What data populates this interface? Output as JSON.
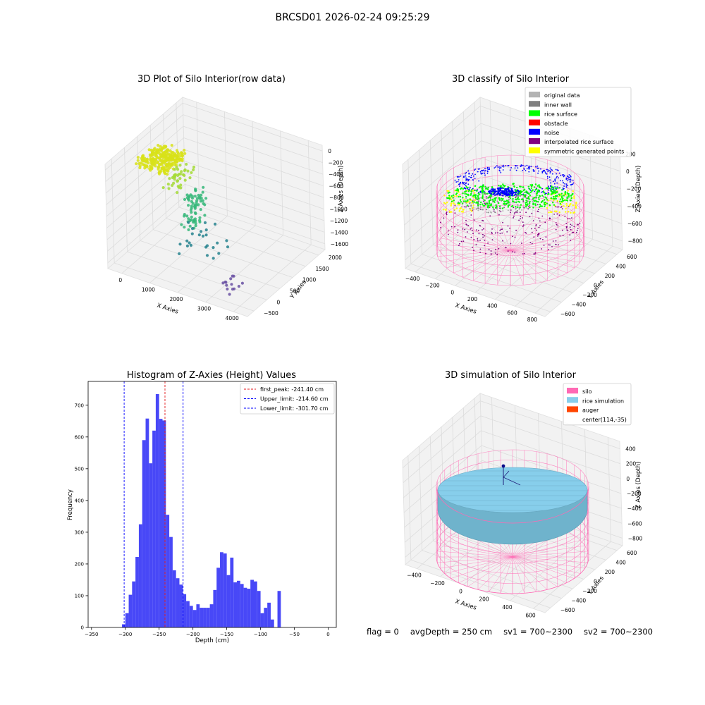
{
  "suptitle": "BRCSD01 2026-02-24 09:25:29",
  "status": {
    "flag": "flag = 0",
    "avg_depth": "avgDepth = 250 cm",
    "sv1": "sv1 = 700~2300",
    "sv2": "sv2 = 700~2300"
  },
  "chart_data": [
    {
      "type": "scatter",
      "projection": "3d",
      "title": "3D Plot of Silo Interior(row data)",
      "xlabel": "X Axies",
      "ylabel": "Y Axies",
      "zlabel": "Z Axies (Depth)",
      "x_ticks": [
        "0",
        "1000",
        "2000",
        "3000",
        "4000"
      ],
      "y_ticks": [
        "−500",
        "0",
        "500",
        "1000",
        "1500",
        "2000"
      ],
      "z_ticks": [
        "0",
        "−200",
        "−400",
        "−600",
        "−800",
        "−1000",
        "−1200",
        "−1400",
        "−1600"
      ],
      "xlim": [
        -600,
        4600
      ],
      "ylim": [
        -600,
        2200
      ],
      "zlim": [
        -1700,
        100
      ],
      "colormap": "viridis by depth",
      "clusters": [
        {
          "name": "",
          "x_range": [
            -400,
            700
          ],
          "y_range": [
            300,
            1100
          ],
          "z_range": [
            -300,
            -150
          ],
          "n": 260,
          "color": "#d8e219"
        },
        {
          "name": "",
          "x_range": [
            600,
            1200
          ],
          "y_range": [
            300,
            1000
          ],
          "z_range": [
            -500,
            -300
          ],
          "n": 40,
          "color": "#a5db36"
        },
        {
          "name": "",
          "x_range": [
            1300,
            1600
          ],
          "y_range": [
            200,
            900
          ],
          "z_range": [
            -1100,
            -500
          ],
          "n": 70,
          "color": "#35b779"
        },
        {
          "name": "",
          "x_range": [
            1500,
            2900
          ],
          "y_range": [
            -200,
            600
          ],
          "z_range": [
            -1300,
            -900
          ],
          "n": 25,
          "color": "#26828e"
        },
        {
          "name": "",
          "x_range": [
            3300,
            3700
          ],
          "y_range": [
            -400,
            200
          ],
          "z_range": [
            -1650,
            -1350
          ],
          "n": 14,
          "color": "#6a51a3"
        }
      ]
    },
    {
      "type": "scatter",
      "projection": "3d",
      "title": "3D classify of Silo Interior",
      "xlabel": "X Axies",
      "ylabel": "Y Axies",
      "zlabel": "Z Axies (Depth)",
      "x_ticks": [
        "−400",
        "−200",
        "0",
        "200",
        "400",
        "600",
        "800"
      ],
      "y_ticks": [
        "−600",
        "−400",
        "−200",
        "0",
        "200",
        "400",
        "600"
      ],
      "z_ticks": [
        "200",
        "0",
        "−200",
        "−400",
        "−600",
        "−800"
      ],
      "legend_position": "top-right",
      "legend": [
        {
          "label": "original data",
          "color": "#b3b3b3"
        },
        {
          "label": "inner wall",
          "color": "#808080"
        },
        {
          "label": "rice surface",
          "color": "#00ff00"
        },
        {
          "label": "obstacle",
          "color": "#ff0000"
        },
        {
          "label": "noise",
          "color": "#0000ff"
        },
        {
          "label": "interpolated rice surface",
          "color": "#800080"
        },
        {
          "label": "symmetric generated points",
          "color": "#ffff00"
        }
      ]
    },
    {
      "type": "bar",
      "title": "Histogram of Z-Axies (Height) Values",
      "xlabel": "Depth (cm)",
      "ylabel": "Frequency",
      "xlim": [
        -355,
        12
      ],
      "ylim": [
        0,
        775
      ],
      "x_ticks": [
        "−350",
        "−300",
        "−250",
        "−200",
        "−150",
        "−100",
        "−50",
        "0"
      ],
      "y_ticks": [
        "0",
        "100",
        "200",
        "300",
        "400",
        "500",
        "600",
        "700"
      ],
      "bar_color": "#4848f7",
      "bin_width": 5,
      "bins": [
        {
          "start": -305,
          "count": 10
        },
        {
          "start": -300,
          "count": 45
        },
        {
          "start": -295,
          "count": 103
        },
        {
          "start": -290,
          "count": 145
        },
        {
          "start": -285,
          "count": 222
        },
        {
          "start": -280,
          "count": 325
        },
        {
          "start": -275,
          "count": 590
        },
        {
          "start": -270,
          "count": 658
        },
        {
          "start": -265,
          "count": 517
        },
        {
          "start": -260,
          "count": 620
        },
        {
          "start": -255,
          "count": 735
        },
        {
          "start": -250,
          "count": 657
        },
        {
          "start": -245,
          "count": 652
        },
        {
          "start": -240,
          "count": 355
        },
        {
          "start": -235,
          "count": 285
        },
        {
          "start": -230,
          "count": 180
        },
        {
          "start": -225,
          "count": 155
        },
        {
          "start": -220,
          "count": 135
        },
        {
          "start": -215,
          "count": 105
        },
        {
          "start": -210,
          "count": 83
        },
        {
          "start": -205,
          "count": 68
        },
        {
          "start": -200,
          "count": 55
        },
        {
          "start": -195,
          "count": 73
        },
        {
          "start": -190,
          "count": 62
        },
        {
          "start": -185,
          "count": 62
        },
        {
          "start": -180,
          "count": 62
        },
        {
          "start": -175,
          "count": 73
        },
        {
          "start": -170,
          "count": 118
        },
        {
          "start": -165,
          "count": 188
        },
        {
          "start": -160,
          "count": 237
        },
        {
          "start": -155,
          "count": 233
        },
        {
          "start": -150,
          "count": 165
        },
        {
          "start": -145,
          "count": 220
        },
        {
          "start": -140,
          "count": 142
        },
        {
          "start": -135,
          "count": 147
        },
        {
          "start": -130,
          "count": 137
        },
        {
          "start": -125,
          "count": 125
        },
        {
          "start": -120,
          "count": 122
        },
        {
          "start": -115,
          "count": 150
        },
        {
          "start": -110,
          "count": 145
        },
        {
          "start": -105,
          "count": 115
        },
        {
          "start": -100,
          "count": 45
        },
        {
          "start": -95,
          "count": 62
        },
        {
          "start": -90,
          "count": 78
        },
        {
          "start": -85,
          "count": 25
        },
        {
          "start": -75,
          "count": 115
        }
      ],
      "reference_lines": [
        {
          "label": "first_peak: -241.40 cm",
          "value": -241.4,
          "color": "#e41a1c"
        },
        {
          "label": "Upper_limit: -214.60 cm",
          "value": -214.6,
          "color": "#0000ff"
        },
        {
          "label": "Lower_limit: -301.70 cm",
          "value": -301.7,
          "color": "#0000ff"
        }
      ],
      "legend_position": "top-right"
    },
    {
      "type": "scatter",
      "projection": "3d",
      "title": "3D simulation of Silo Interior",
      "xlabel": "X Axies",
      "ylabel": "Y Axies",
      "zlabel": "Z Axies (Depth)",
      "x_ticks": [
        "−400",
        "−200",
        "0",
        "200",
        "400",
        "600"
      ],
      "y_ticks": [
        "−600",
        "−400",
        "−200",
        "0",
        "200",
        "400",
        "600"
      ],
      "z_ticks": [
        "400",
        "200",
        "0",
        "−200",
        "−400",
        "−600",
        "−800"
      ],
      "legend_position": "top-right",
      "legend": [
        {
          "label": "silo",
          "color": "#ff69b4"
        },
        {
          "label": "rice simulation",
          "color": "#87ceeb"
        },
        {
          "label": "auger",
          "color": "#ff4500"
        },
        {
          "label": "center(114,-35)",
          "color": ""
        }
      ]
    }
  ]
}
